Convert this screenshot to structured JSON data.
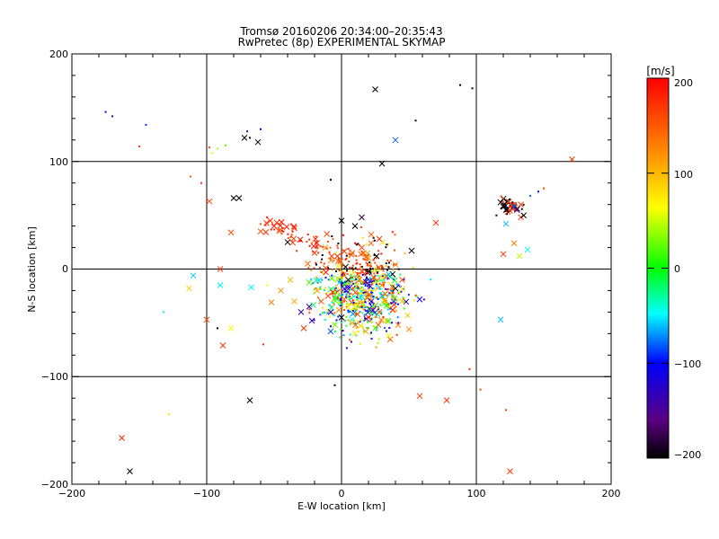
{
  "chart_data": {
    "type": "scatter",
    "title": "Tromsø 20160206 20:34:00–20:35:43",
    "subtitle": "RwPretec (8p) EXPERIMENTAL SKYMAP",
    "xlabel": "E-W location [km]",
    "ylabel": "N-S location [km]",
    "xlim": [
      -200,
      200
    ],
    "ylim": [
      -200,
      200
    ],
    "xticks": [
      "−200",
      "−100",
      "0",
      "100",
      "200"
    ],
    "yticks": [
      "−200",
      "−100",
      "0",
      "100",
      "200"
    ],
    "grid_x": [
      -100,
      0,
      100
    ],
    "grid_y": [
      -100,
      0,
      100
    ],
    "colorbar": {
      "label": "[m/s]",
      "range": [
        -200,
        200
      ],
      "ticks": [
        "−200",
        "−100",
        "0",
        "100",
        "200"
      ]
    },
    "markers": {
      "cross": "x",
      "point": "."
    },
    "points": [
      [
        -163,
        -157,
        180,
        "x"
      ],
      [
        -157,
        -188,
        -200,
        "x"
      ],
      [
        -128,
        -135,
        80,
        "."
      ],
      [
        -113,
        -18,
        90,
        "x"
      ],
      [
        -110,
        -6,
        -60,
        "x"
      ],
      [
        -100,
        -47,
        160,
        "x"
      ],
      [
        -98,
        63,
        160,
        "x"
      ],
      [
        -92,
        -55,
        -200,
        "."
      ],
      [
        -90,
        0,
        170,
        "x"
      ],
      [
        -88,
        -71,
        170,
        "x"
      ],
      [
        -90,
        -15,
        -50,
        "x"
      ],
      [
        -82,
        -55,
        60,
        "x"
      ],
      [
        -80,
        66,
        -200,
        "x"
      ],
      [
        -82,
        34,
        160,
        "x"
      ],
      [
        -76,
        66,
        -200,
        "x"
      ],
      [
        -72,
        122,
        -200,
        "x"
      ],
      [
        -68,
        -122,
        -200,
        "x"
      ],
      [
        -67,
        -17,
        -50,
        "x"
      ],
      [
        -62,
        118,
        -200,
        "x"
      ],
      [
        -60,
        35,
        150,
        "x"
      ],
      [
        -55,
        -15,
        60,
        "."
      ],
      [
        -52,
        -31,
        130,
        "x"
      ],
      [
        -48,
        43,
        170,
        "x"
      ],
      [
        -45,
        -20,
        120,
        "x"
      ],
      [
        -38,
        -10,
        100,
        "x"
      ],
      [
        -35,
        -30,
        110,
        "x"
      ],
      [
        -30,
        -40,
        -130,
        "x"
      ],
      [
        -28,
        -55,
        170,
        "x"
      ],
      [
        -24,
        -35,
        -140,
        "x"
      ],
      [
        -22,
        -48,
        -130,
        "x"
      ],
      [
        -18,
        -20,
        120,
        "x"
      ],
      [
        -15,
        -30,
        150,
        "x"
      ],
      [
        -10,
        -25,
        170,
        "x"
      ],
      [
        -8,
        -40,
        -100,
        "x"
      ],
      [
        -5,
        -52,
        30,
        "x"
      ],
      [
        -2,
        -38,
        120,
        "x"
      ],
      [
        0,
        -45,
        -200,
        "x"
      ],
      [
        2,
        -28,
        140,
        "x"
      ],
      [
        5,
        -35,
        60,
        "x"
      ],
      [
        8,
        -50,
        100,
        "x"
      ],
      [
        10,
        -60,
        70,
        "x"
      ],
      [
        12,
        -42,
        160,
        "x"
      ],
      [
        15,
        -26,
        -40,
        "x"
      ],
      [
        18,
        -58,
        110,
        "x"
      ],
      [
        20,
        -45,
        170,
        "x"
      ],
      [
        22,
        -30,
        -120,
        "x"
      ],
      [
        25,
        -55,
        20,
        "x"
      ],
      [
        28,
        -40,
        150,
        "x"
      ],
      [
        30,
        -25,
        -60,
        "x"
      ],
      [
        33,
        -48,
        90,
        "x"
      ],
      [
        35,
        -62,
        60,
        "x"
      ],
      [
        38,
        -38,
        180,
        "x"
      ],
      [
        42,
        -52,
        130,
        "x"
      ],
      [
        45,
        -30,
        100,
        "x"
      ],
      [
        50,
        -56,
        120,
        "x"
      ],
      [
        0,
        45,
        -200,
        "x"
      ],
      [
        10,
        40,
        -200,
        "x"
      ],
      [
        15,
        48,
        -180,
        "x"
      ],
      [
        22,
        32,
        150,
        "x"
      ],
      [
        28,
        28,
        170,
        "x"
      ],
      [
        30,
        98,
        -200,
        "x"
      ],
      [
        25,
        167,
        -200,
        "x"
      ],
      [
        52,
        17,
        -200,
        "x"
      ],
      [
        40,
        120,
        -80,
        "x"
      ],
      [
        70,
        43,
        170,
        "x"
      ],
      [
        58,
        -118,
        170,
        "x"
      ],
      [
        78,
        -122,
        170,
        "x"
      ],
      [
        118,
        62,
        -200,
        "x"
      ],
      [
        120,
        58,
        -200,
        "x"
      ],
      [
        122,
        55,
        -200,
        "x"
      ],
      [
        125,
        -188,
        170,
        "x"
      ],
      [
        128,
        58,
        -80,
        "x"
      ],
      [
        130,
        55,
        -150,
        "x"
      ],
      [
        133,
        60,
        170,
        "x"
      ],
      [
        128,
        24,
        130,
        "x"
      ],
      [
        120,
        14,
        170,
        "x"
      ],
      [
        132,
        12,
        50,
        "x"
      ],
      [
        138,
        18,
        -50,
        "x"
      ],
      [
        118,
        -47,
        -60,
        "x"
      ],
      [
        122,
        42,
        -60,
        "x"
      ],
      [
        171,
        102,
        170,
        "x"
      ],
      [
        95,
        -93,
        170,
        "."
      ],
      [
        103,
        -112,
        170,
        "."
      ],
      [
        122,
        -131,
        170,
        "."
      ],
      [
        5,
        -10,
        -200,
        "x"
      ],
      [
        12,
        -5,
        150,
        "x"
      ],
      [
        18,
        -12,
        -150,
        "x"
      ],
      [
        24,
        -8,
        170,
        "x"
      ],
      [
        30,
        -15,
        120,
        "x"
      ],
      [
        35,
        -5,
        -60,
        "x"
      ],
      [
        40,
        -18,
        -200,
        "x"
      ],
      [
        45,
        -10,
        160,
        "x"
      ],
      [
        -8,
        8,
        130,
        "x"
      ],
      [
        -3,
        12,
        170,
        "x"
      ],
      [
        3,
        2,
        -200,
        "x"
      ],
      [
        8,
        15,
        140,
        "x"
      ],
      [
        15,
        20,
        170,
        "x"
      ],
      [
        20,
        10,
        120,
        "x"
      ],
      [
        26,
        12,
        -200,
        "x"
      ],
      [
        -20,
        15,
        170,
        "x"
      ],
      [
        -12,
        20,
        120,
        "x"
      ],
      [
        -25,
        5,
        140,
        "x"
      ],
      [
        -40,
        25,
        -200,
        "x"
      ],
      [
        -50,
        40,
        180,
        "x"
      ],
      [
        -35,
        38,
        170,
        "x"
      ],
      [
        -175,
        146,
        -120,
        "."
      ],
      [
        -170,
        142,
        -150,
        "."
      ],
      [
        -145,
        134,
        -90,
        "."
      ],
      [
        -150,
        114,
        170,
        "."
      ],
      [
        -112,
        86,
        150,
        "."
      ],
      [
        -104,
        80,
        170,
        "."
      ],
      [
        -98,
        113,
        160,
        "."
      ],
      [
        -96,
        108,
        60,
        "."
      ],
      [
        -92,
        112,
        40,
        "."
      ],
      [
        -86,
        115,
        20,
        "."
      ],
      [
        -70,
        128,
        -150,
        "."
      ],
      [
        -68,
        122,
        -200,
        "."
      ],
      [
        -60,
        130,
        -100,
        "."
      ],
      [
        -8,
        83,
        -200,
        "."
      ],
      [
        -5,
        -108,
        -200,
        "."
      ],
      [
        55,
        138,
        -200,
        "."
      ],
      [
        88,
        171,
        -200,
        "."
      ],
      [
        97,
        168,
        -200,
        "."
      ],
      [
        140,
        68,
        -80,
        "."
      ],
      [
        146,
        72,
        -100,
        "."
      ],
      [
        150,
        75,
        160,
        "."
      ],
      [
        -132,
        -40,
        -50,
        "."
      ],
      [
        -58,
        -70,
        170,
        "."
      ]
    ],
    "cloud_seed": 20160206,
    "cloud_center": [
      15,
      -20
    ]
  }
}
